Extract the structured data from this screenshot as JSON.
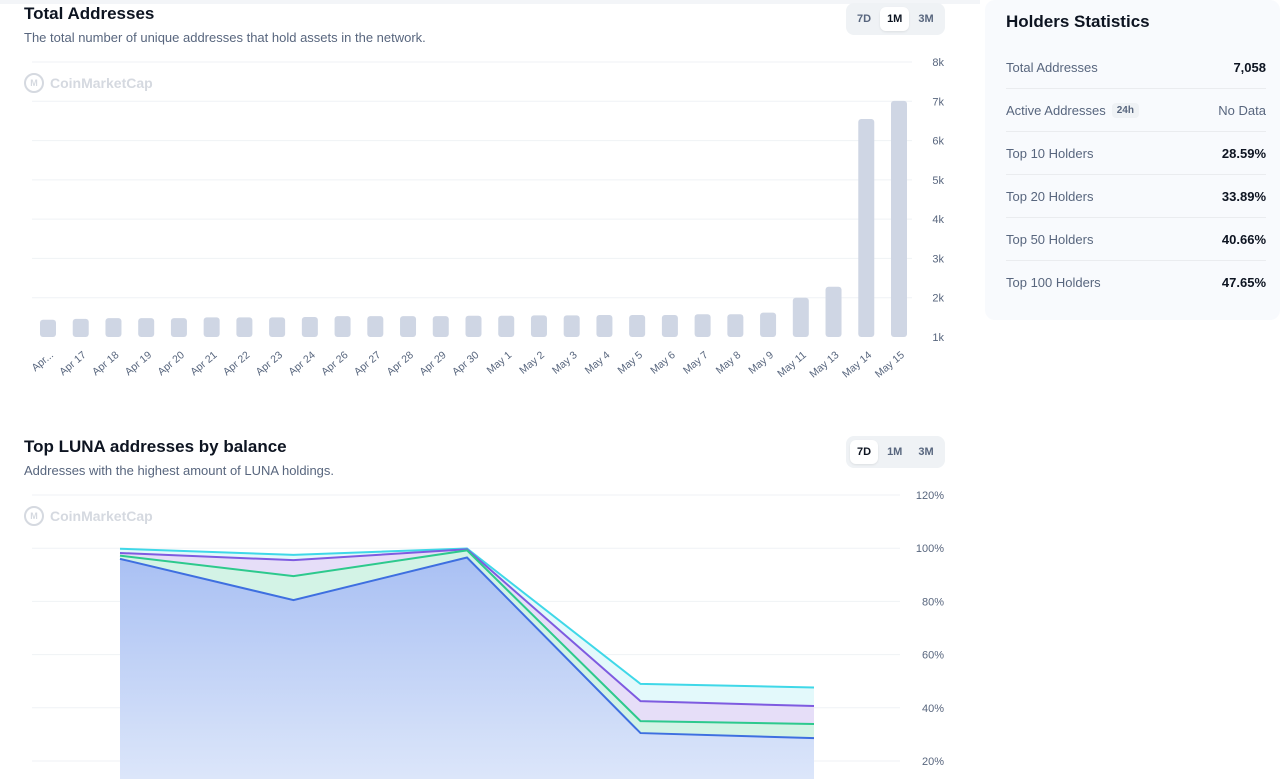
{
  "total_addresses": {
    "title": "Total Addresses",
    "subtitle": "The total number of unique addresses that hold assets in the network.",
    "watermark": "CoinMarketCap",
    "tabs": [
      {
        "label": "7D",
        "active": false
      },
      {
        "label": "1M",
        "active": true
      },
      {
        "label": "3M",
        "active": false
      }
    ]
  },
  "top_luna": {
    "title": "Top LUNA addresses by balance",
    "subtitle": "Addresses with the highest amount of LUNA holdings.",
    "watermark": "CoinMarketCap",
    "tabs": [
      {
        "label": "7D",
        "active": true
      },
      {
        "label": "1M",
        "active": false
      },
      {
        "label": "3M",
        "active": false
      }
    ]
  },
  "holders": {
    "title": "Holders Statistics",
    "rows": [
      {
        "label": "Total Addresses",
        "value": "7,058",
        "badge": ""
      },
      {
        "label": "Active Addresses",
        "value": "No Data",
        "badge": "24h"
      },
      {
        "label": "Top 10 Holders",
        "value": "28.59%",
        "badge": ""
      },
      {
        "label": "Top 20 Holders",
        "value": "33.89%",
        "badge": ""
      },
      {
        "label": "Top 50 Holders",
        "value": "40.66%",
        "badge": ""
      },
      {
        "label": "Top 100 Holders",
        "value": "47.65%",
        "badge": ""
      }
    ]
  },
  "chart_data": [
    {
      "type": "bar",
      "categories": [
        "Apr...",
        "Apr 17",
        "Apr 18",
        "Apr 19",
        "Apr 20",
        "Apr 21",
        "Apr 22",
        "Apr 23",
        "Apr 24",
        "Apr 26",
        "Apr 27",
        "Apr 28",
        "Apr 29",
        "Apr 30",
        "May 1",
        "May 2",
        "May 3",
        "May 4",
        "May 5",
        "May 6",
        "May 7",
        "May 8",
        "May 9",
        "May 11",
        "May 13",
        "May 14",
        "May 15"
      ],
      "values": [
        1440,
        1460,
        1480,
        1480,
        1480,
        1500,
        1500,
        1500,
        1510,
        1530,
        1530,
        1530,
        1530,
        1540,
        1540,
        1550,
        1550,
        1560,
        1560,
        1560,
        1580,
        1580,
        1620,
        2000,
        2280,
        6550,
        7010
      ],
      "yticks": [
        "1k",
        "2k",
        "3k",
        "4k",
        "5k",
        "6k",
        "7k",
        "8k"
      ],
      "ylim": [
        1000,
        8000
      ],
      "bar_color": "#cfd6e4",
      "grid": true
    },
    {
      "type": "area",
      "x_points": 5,
      "yticks": [
        "20%",
        "40%",
        "60%",
        "80%",
        "100%",
        "120%"
      ],
      "ylim": [
        20,
        120
      ],
      "series": [
        {
          "values": [
            99.8,
            97.5,
            99.9,
            49.0,
            47.65
          ],
          "color": "#3fd8e8"
        },
        {
          "values": [
            98.2,
            95.5,
            99.6,
            42.5,
            40.66
          ],
          "color": "#7e5be0"
        },
        {
          "values": [
            97.2,
            89.5,
            99.2,
            35.0,
            33.89
          ],
          "color": "#2dc98d"
        },
        {
          "values": [
            96.0,
            80.5,
            96.5,
            30.5,
            28.59
          ],
          "color": "#3e6fe0"
        }
      ],
      "grid": true
    }
  ]
}
